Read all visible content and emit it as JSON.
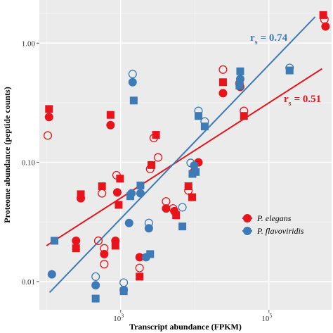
{
  "chart_data": {
    "type": "scatter",
    "xlabel": "Transcript abundance (FPKM)",
    "ylabel": "Proteome abundance (peptide counts)",
    "x_scale": "log",
    "y_scale": "log",
    "xlim": [
      80,
      700000
    ],
    "ylim": [
      0.0058,
      2.3
    ],
    "x_ticks": [
      {
        "value": 1000,
        "base": "10",
        "exp": "3"
      },
      {
        "value": 100000,
        "base": "10",
        "exp": "5"
      }
    ],
    "y_ticks": [
      {
        "value": 0.01,
        "label": "0.01"
      },
      {
        "value": 0.1,
        "label": "0.10"
      },
      {
        "value": 1.0,
        "label": "1.00"
      }
    ],
    "grid": true,
    "legend_position": "right",
    "series": [
      {
        "name": "P. elegans",
        "color": "#e8141c",
        "fit_line": {
          "x": [
            100,
            520000
          ],
          "y": [
            0.02,
            0.61
          ]
        },
        "points": [
          {
            "x": 108,
            "y": 0.28,
            "shape": "square",
            "filled": true
          },
          {
            "x": 108,
            "y": 0.24,
            "shape": "circle",
            "filled": true
          },
          {
            "x": 104,
            "y": 0.168,
            "shape": "circle",
            "filled": false
          },
          {
            "x": 290,
            "y": 0.054,
            "shape": "square",
            "filled": true
          },
          {
            "x": 290,
            "y": 0.05,
            "shape": "circle",
            "filled": true
          },
          {
            "x": 250,
            "y": 0.022,
            "shape": "circle",
            "filled": true
          },
          {
            "x": 250,
            "y": 0.019,
            "shape": "square",
            "filled": true
          },
          {
            "x": 500,
            "y": 0.022,
            "shape": "circle",
            "filled": false
          },
          {
            "x": 560,
            "y": 0.063,
            "shape": "square",
            "filled": true
          },
          {
            "x": 560,
            "y": 0.055,
            "shape": "circle",
            "filled": false
          },
          {
            "x": 600,
            "y": 0.019,
            "shape": "circle",
            "filled": false
          },
          {
            "x": 600,
            "y": 0.017,
            "shape": "circle",
            "filled": true
          },
          {
            "x": 600,
            "y": 0.014,
            "shape": "circle",
            "filled": false
          },
          {
            "x": 730,
            "y": 0.25,
            "shape": "square",
            "filled": true
          },
          {
            "x": 730,
            "y": 0.205,
            "shape": "circle",
            "filled": true
          },
          {
            "x": 880,
            "y": 0.078,
            "shape": "circle",
            "filled": false
          },
          {
            "x": 900,
            "y": 0.056,
            "shape": "circle",
            "filled": true
          },
          {
            "x": 940,
            "y": 0.044,
            "shape": "square",
            "filled": true
          },
          {
            "x": 980,
            "y": 0.073,
            "shape": "square",
            "filled": true
          },
          {
            "x": 850,
            "y": 0.022,
            "shape": "circle",
            "filled": true
          },
          {
            "x": 850,
            "y": 0.02,
            "shape": "square",
            "filled": true
          },
          {
            "x": 1800,
            "y": 0.016,
            "shape": "circle",
            "filled": true
          },
          {
            "x": 1800,
            "y": 0.013,
            "shape": "circle",
            "filled": false
          },
          {
            "x": 1800,
            "y": 0.011,
            "shape": "square",
            "filled": true
          },
          {
            "x": 2800,
            "y": 0.16,
            "shape": "circle",
            "filled": false
          },
          {
            "x": 3000,
            "y": 0.17,
            "shape": "square",
            "filled": true
          },
          {
            "x": 2600,
            "y": 0.095,
            "shape": "square",
            "filled": true
          },
          {
            "x": 2500,
            "y": 0.088,
            "shape": "circle",
            "filled": false
          },
          {
            "x": 3200,
            "y": 0.11,
            "shape": "circle",
            "filled": false
          },
          {
            "x": 4100,
            "y": 0.047,
            "shape": "circle",
            "filled": false
          },
          {
            "x": 4100,
            "y": 0.041,
            "shape": "circle",
            "filled": true
          },
          {
            "x": 5100,
            "y": 0.041,
            "shape": "circle",
            "filled": false
          },
          {
            "x": 5600,
            "y": 0.036,
            "shape": "square",
            "filled": true
          },
          {
            "x": 5300,
            "y": 0.039,
            "shape": "circle",
            "filled": true
          },
          {
            "x": 8200,
            "y": 0.063,
            "shape": "square",
            "filled": true
          },
          {
            "x": 8200,
            "y": 0.058,
            "shape": "circle",
            "filled": false
          },
          {
            "x": 9200,
            "y": 0.051,
            "shape": "square",
            "filled": true
          },
          {
            "x": 9700,
            "y": 0.083,
            "shape": "circle",
            "filled": true
          },
          {
            "x": 11200,
            "y": 0.1,
            "shape": "circle",
            "filled": true
          },
          {
            "x": 24000,
            "y": 0.6,
            "shape": "circle",
            "filled": false
          },
          {
            "x": 24000,
            "y": 0.47,
            "shape": "square",
            "filled": true
          },
          {
            "x": 24000,
            "y": 0.38,
            "shape": "circle",
            "filled": true
          },
          {
            "x": 40000,
            "y": 0.46,
            "shape": "circle",
            "filled": false
          },
          {
            "x": 41000,
            "y": 0.43,
            "shape": "circle",
            "filled": true
          },
          {
            "x": 46000,
            "y": 0.27,
            "shape": "circle",
            "filled": false
          },
          {
            "x": 46000,
            "y": 0.245,
            "shape": "square",
            "filled": true
          },
          {
            "x": 540000,
            "y": 1.72,
            "shape": "square",
            "filled": true
          },
          {
            "x": 560000,
            "y": 1.58,
            "shape": "circle",
            "filled": false
          },
          {
            "x": 580000,
            "y": 1.38,
            "shape": "circle",
            "filled": true
          }
        ]
      },
      {
        "name": "P. flavoviridis",
        "color": "#3e7ab6",
        "fit_line": {
          "x": [
            110,
            420000
          ],
          "y": [
            0.0081,
            1.66
          ]
        },
        "points": [
          {
            "x": 118,
            "y": 0.0115,
            "shape": "circle",
            "filled": true
          },
          {
            "x": 128,
            "y": 0.022,
            "shape": "square",
            "filled": true
          },
          {
            "x": 460,
            "y": 0.011,
            "shape": "circle",
            "filled": false
          },
          {
            "x": 460,
            "y": 0.0093,
            "shape": "circle",
            "filled": true
          },
          {
            "x": 460,
            "y": 0.0072,
            "shape": "square",
            "filled": true
          },
          {
            "x": 1100,
            "y": 0.0098,
            "shape": "circle",
            "filled": false
          },
          {
            "x": 1100,
            "y": 0.0085,
            "shape": "circle",
            "filled": true
          },
          {
            "x": 1100,
            "y": 0.0083,
            "shape": "square",
            "filled": true
          },
          {
            "x": 1450,
            "y": 0.55,
            "shape": "circle",
            "filled": false
          },
          {
            "x": 1450,
            "y": 0.47,
            "shape": "circle",
            "filled": true
          },
          {
            "x": 1500,
            "y": 0.33,
            "shape": "square",
            "filled": true
          },
          {
            "x": 1400,
            "y": 0.055,
            "shape": "circle",
            "filled": true
          },
          {
            "x": 1350,
            "y": 0.052,
            "shape": "square",
            "filled": true
          },
          {
            "x": 1300,
            "y": 0.031,
            "shape": "circle",
            "filled": true
          },
          {
            "x": 1850,
            "y": 0.064,
            "shape": "square",
            "filled": true
          },
          {
            "x": 1850,
            "y": 0.055,
            "shape": "circle",
            "filled": true
          },
          {
            "x": 2400,
            "y": 0.028,
            "shape": "circle",
            "filled": true
          },
          {
            "x": 2400,
            "y": 0.031,
            "shape": "circle",
            "filled": false
          },
          {
            "x": 2200,
            "y": 0.016,
            "shape": "circle",
            "filled": true
          },
          {
            "x": 2500,
            "y": 0.017,
            "shape": "square",
            "filled": true
          },
          {
            "x": 6800,
            "y": 0.042,
            "shape": "circle",
            "filled": false
          },
          {
            "x": 6800,
            "y": 0.029,
            "shape": "square",
            "filled": true
          },
          {
            "x": 8800,
            "y": 0.099,
            "shape": "circle",
            "filled": false
          },
          {
            "x": 9300,
            "y": 0.08,
            "shape": "square",
            "filled": true
          },
          {
            "x": 9800,
            "y": 0.094,
            "shape": "circle",
            "filled": true
          },
          {
            "x": 10300,
            "y": 0.083,
            "shape": "square",
            "filled": true
          },
          {
            "x": 11200,
            "y": 0.27,
            "shape": "circle",
            "filled": false
          },
          {
            "x": 11200,
            "y": 0.245,
            "shape": "square",
            "filled": true
          },
          {
            "x": 13600,
            "y": 0.22,
            "shape": "circle",
            "filled": false
          },
          {
            "x": 13600,
            "y": 0.2,
            "shape": "square",
            "filled": true
          },
          {
            "x": 41000,
            "y": 0.58,
            "shape": "square",
            "filled": true
          },
          {
            "x": 41000,
            "y": 0.5,
            "shape": "circle",
            "filled": true
          },
          {
            "x": 40000,
            "y": 0.44,
            "shape": "square",
            "filled": true
          },
          {
            "x": 190000,
            "y": 0.62,
            "shape": "circle",
            "filled": false
          },
          {
            "x": 190000,
            "y": 0.59,
            "shape": "square",
            "filled": true
          }
        ]
      }
    ],
    "annotations": [
      {
        "text": "r",
        "sub": "s",
        "value": "=  0.74",
        "color": "#3e7ab6"
      },
      {
        "text": "r",
        "sub": "s",
        "value": "=  0.51",
        "color": "#e8141c"
      }
    ]
  }
}
